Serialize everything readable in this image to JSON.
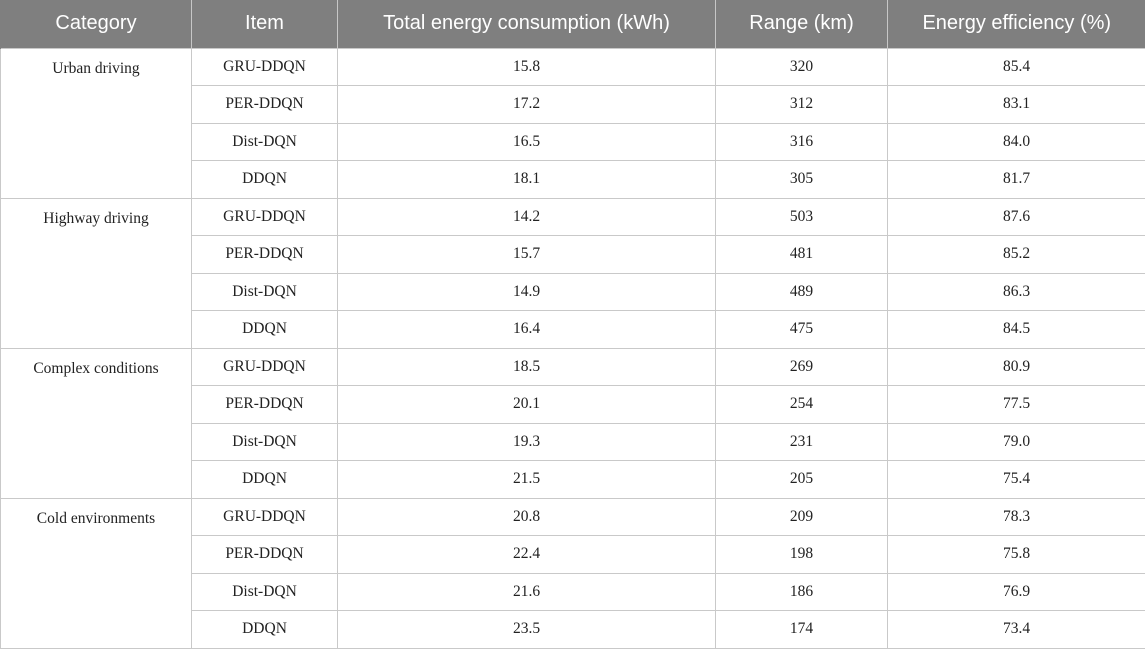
{
  "table": {
    "headers": [
      "Category",
      "Item",
      "Total energy consumption (kWh)",
      "Range (km)",
      "Energy efficiency (%)"
    ],
    "groups": [
      {
        "category": "Urban driving",
        "rows": [
          [
            "GRU-DDQN",
            "15.8",
            "320",
            "85.4"
          ],
          [
            "PER-DDQN",
            "17.2",
            "312",
            "83.1"
          ],
          [
            "Dist-DQN",
            "16.5",
            "316",
            "84.0"
          ],
          [
            "DDQN",
            "18.1",
            "305",
            "81.7"
          ]
        ]
      },
      {
        "category": "Highway driving",
        "rows": [
          [
            "GRU-DDQN",
            "14.2",
            "503",
            "87.6"
          ],
          [
            "PER-DDQN",
            "15.7",
            "481",
            "85.2"
          ],
          [
            "Dist-DQN",
            "14.9",
            "489",
            "86.3"
          ],
          [
            "DDQN",
            "16.4",
            "475",
            "84.5"
          ]
        ]
      },
      {
        "category": "Complex conditions",
        "rows": [
          [
            "GRU-DDQN",
            "18.5",
            "269",
            "80.9"
          ],
          [
            "PER-DDQN",
            "20.1",
            "254",
            "77.5"
          ],
          [
            "Dist-DQN",
            "19.3",
            "231",
            "79.0"
          ],
          [
            "DDQN",
            "21.5",
            "205",
            "75.4"
          ]
        ]
      },
      {
        "category": "Cold environments",
        "rows": [
          [
            "GRU-DDQN",
            "20.8",
            "209",
            "78.3"
          ],
          [
            "PER-DDQN",
            "22.4",
            "198",
            "75.8"
          ],
          [
            "Dist-DQN",
            "21.6",
            "186",
            "76.9"
          ],
          [
            "DDQN",
            "23.5",
            "174",
            "73.4"
          ]
        ]
      }
    ]
  }
}
